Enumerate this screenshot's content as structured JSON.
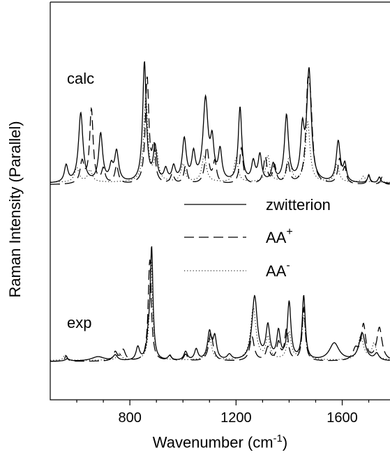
{
  "chart_data": {
    "type": "line",
    "xlabel": "Wavenumber (cm",
    "xlabel_sup": "-1",
    "xlabel_end": ")",
    "ylabel": "Raman Intensity (Parallel)",
    "xlim": [
      500,
      1780
    ],
    "xticks": [
      800,
      1200,
      1600
    ],
    "xtick_labels": [
      "800",
      "1200",
      "1600"
    ],
    "panels": [
      {
        "label": "calc",
        "series": [
          {
            "name": "zwitterion",
            "style": "solid",
            "baseline": 0.04,
            "peaks": [
              [
                560,
                0.14,
                8
              ],
              [
                615,
                0.58,
                10
              ],
              [
                690,
                0.4,
                9
              ],
              [
                730,
                0.12,
                8
              ],
              [
                750,
                0.25,
                9
              ],
              [
                855,
                1.0,
                8
              ],
              [
                895,
                0.28,
                8
              ],
              [
                935,
                0.1,
                8
              ],
              [
                965,
                0.12,
                8
              ],
              [
                1005,
                0.35,
                9
              ],
              [
                1040,
                0.22,
                8
              ],
              [
                1085,
                0.68,
                11
              ],
              [
                1110,
                0.3,
                8
              ],
              [
                1140,
                0.25,
                8
              ],
              [
                1215,
                0.62,
                8
              ],
              [
                1265,
                0.16,
                8
              ],
              [
                1290,
                0.22,
                8
              ],
              [
                1340,
                0.14,
                8
              ],
              [
                1390,
                0.55,
                9
              ],
              [
                1450,
                0.4,
                8
              ],
              [
                1475,
                0.92,
                10
              ],
              [
                1585,
                0.34,
                9
              ],
              [
                1610,
                0.14,
                7
              ],
              [
                1700,
                0.06,
                6
              ],
              [
                1740,
                0.05,
                6
              ]
            ]
          },
          {
            "name": "AA",
            "name_sup": "+",
            "style": "dashed",
            "baseline": 0.03,
            "peaks": [
              [
                620,
                0.18,
                9
              ],
              [
                655,
                0.62,
                8
              ],
              [
                700,
                0.12,
                8
              ],
              [
                750,
                0.15,
                8
              ],
              [
                865,
                0.88,
                8
              ],
              [
                890,
                0.28,
                7
              ],
              [
                960,
                0.08,
                8
              ],
              [
                1010,
                0.15,
                8
              ],
              [
                1090,
                0.3,
                9
              ],
              [
                1120,
                0.18,
                8
              ],
              [
                1220,
                0.3,
                8
              ],
              [
                1310,
                0.22,
                8
              ],
              [
                1345,
                0.15,
                8
              ],
              [
                1395,
                0.18,
                8
              ],
              [
                1470,
                0.6,
                8
              ],
              [
                1480,
                0.55,
                10
              ],
              [
                1590,
                0.2,
                8
              ],
              [
                1610,
                0.12,
                7
              ],
              [
                1700,
                0.08,
                6
              ],
              [
                1750,
                0.06,
                6
              ]
            ]
          },
          {
            "name": "AA",
            "name_sup": "-",
            "style": "dotted",
            "baseline": 0.05,
            "peaks": [
              [
                600,
                0.12,
                10
              ],
              [
                650,
                0.1,
                10
              ],
              [
                860,
                0.7,
                9
              ],
              [
                900,
                0.24,
                9
              ],
              [
                1000,
                0.15,
                9
              ],
              [
                1080,
                0.22,
                10
              ],
              [
                1200,
                0.2,
                9
              ],
              [
                1320,
                0.22,
                9
              ],
              [
                1400,
                0.2,
                9
              ],
              [
                1470,
                0.5,
                10
              ],
              [
                1580,
                0.15,
                9
              ],
              [
                1680,
                0.05,
                8
              ]
            ]
          }
        ]
      },
      {
        "label": "exp",
        "series": [
          {
            "name": "zwitterion",
            "style": "solid",
            "baseline": 0.0,
            "peaks": [
              [
                565,
                0.02,
                10
              ],
              [
                680,
                0.04,
                30
              ],
              [
                745,
                0.05,
                10
              ],
              [
                830,
                0.12,
                8
              ],
              [
                870,
                0.18,
                7
              ],
              [
                882,
                1.0,
                6
              ],
              [
                950,
                0.04,
                8
              ],
              [
                1010,
                0.08,
                8
              ],
              [
                1050,
                0.1,
                8
              ],
              [
                1100,
                0.25,
                9
              ],
              [
                1120,
                0.2,
                8
              ],
              [
                1175,
                0.05,
                10
              ],
              [
                1270,
                0.58,
                12
              ],
              [
                1320,
                0.3,
                9
              ],
              [
                1360,
                0.25,
                8
              ],
              [
                1400,
                0.52,
                8
              ],
              [
                1455,
                0.58,
                7
              ],
              [
                1570,
                0.16,
                22
              ],
              [
                1675,
                0.25,
                14
              ],
              [
                1730,
                0.06,
                10
              ]
            ]
          },
          {
            "name": "AA",
            "name_sup": "+",
            "style": "dashed",
            "baseline": 0.0,
            "peaks": [
              [
                560,
                0.05,
                6
              ],
              [
                745,
                0.08,
                9
              ],
              [
                775,
                0.1,
                10
              ],
              [
                875,
                0.92,
                7
              ],
              [
                950,
                0.05,
                8
              ],
              [
                1010,
                0.06,
                8
              ],
              [
                1105,
                0.26,
                10
              ],
              [
                1260,
                0.22,
                10
              ],
              [
                1320,
                0.12,
                9
              ],
              [
                1360,
                0.16,
                8
              ],
              [
                1390,
                0.28,
                8
              ],
              [
                1455,
                0.48,
                7
              ],
              [
                1650,
                0.1,
                12
              ],
              [
                1680,
                0.32,
                10
              ],
              [
                1740,
                0.3,
                12
              ]
            ]
          },
          {
            "name": "AA",
            "name_sup": "-",
            "style": "dotted",
            "baseline": 0.01,
            "peaks": [
              [
                555,
                0.05,
                6
              ],
              [
                760,
                0.06,
                10
              ],
              [
                880,
                0.9,
                7
              ],
              [
                1100,
                0.2,
                10
              ],
              [
                1265,
                0.48,
                12
              ],
              [
                1320,
                0.2,
                9
              ],
              [
                1400,
                0.25,
                9
              ],
              [
                1455,
                0.4,
                8
              ],
              [
                1670,
                0.22,
                12
              ],
              [
                1720,
                0.15,
                10
              ]
            ]
          }
        ]
      }
    ],
    "legend_position": "center-right",
    "grid": false
  }
}
